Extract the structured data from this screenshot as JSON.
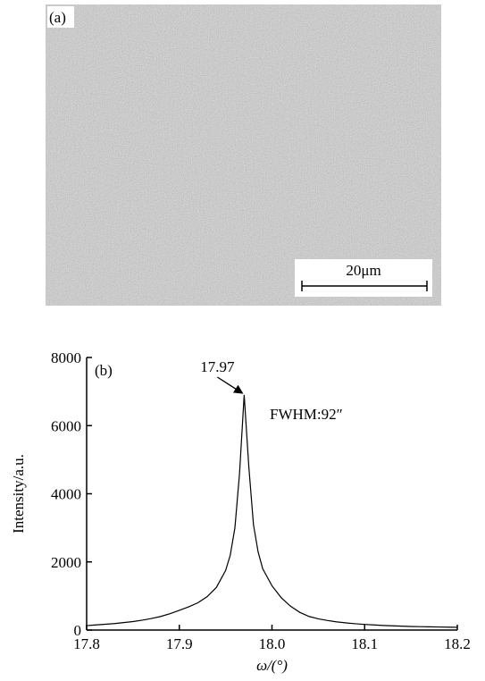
{
  "panel_a": {
    "label": "(a)",
    "scale_bar_label": "20μm"
  },
  "chart_data": {
    "type": "line",
    "panel_label": "(b)",
    "x_label": "ω/(°)",
    "y_label": "Intensity/a.u.",
    "peak_label": "17.97",
    "fwhm_label": "FWHM:92″",
    "x": [
      17.8,
      17.81,
      17.82,
      17.83,
      17.84,
      17.85,
      17.86,
      17.87,
      17.88,
      17.89,
      17.9,
      17.91,
      17.92,
      17.93,
      17.94,
      17.95,
      17.955,
      17.96,
      17.965,
      17.97,
      17.975,
      17.98,
      17.985,
      17.99,
      18.0,
      18.01,
      18.02,
      18.03,
      18.04,
      18.05,
      18.06,
      18.07,
      18.08,
      18.09,
      18.1,
      18.11,
      18.12,
      18.13,
      18.14,
      18.15,
      18.16,
      18.17,
      18.18,
      18.19,
      18.2
    ],
    "values": [
      130,
      150,
      170,
      190,
      220,
      250,
      290,
      340,
      400,
      480,
      580,
      680,
      800,
      980,
      1250,
      1750,
      2200,
      3000,
      4600,
      6900,
      4800,
      3100,
      2300,
      1800,
      1300,
      950,
      700,
      520,
      400,
      330,
      280,
      240,
      210,
      185,
      165,
      150,
      135,
      125,
      115,
      105,
      100,
      95,
      90,
      85,
      80
    ],
    "color": "#000000",
    "xlim": [
      17.8,
      18.2
    ],
    "xticks": [
      17.8,
      17.9,
      {
        "value": 18.0,
        "label": "18.0"
      },
      18.1,
      18.2
    ],
    "ylim": [
      0,
      8000
    ],
    "yticks": [
      0,
      2000,
      4000,
      6000,
      8000
    ]
  }
}
